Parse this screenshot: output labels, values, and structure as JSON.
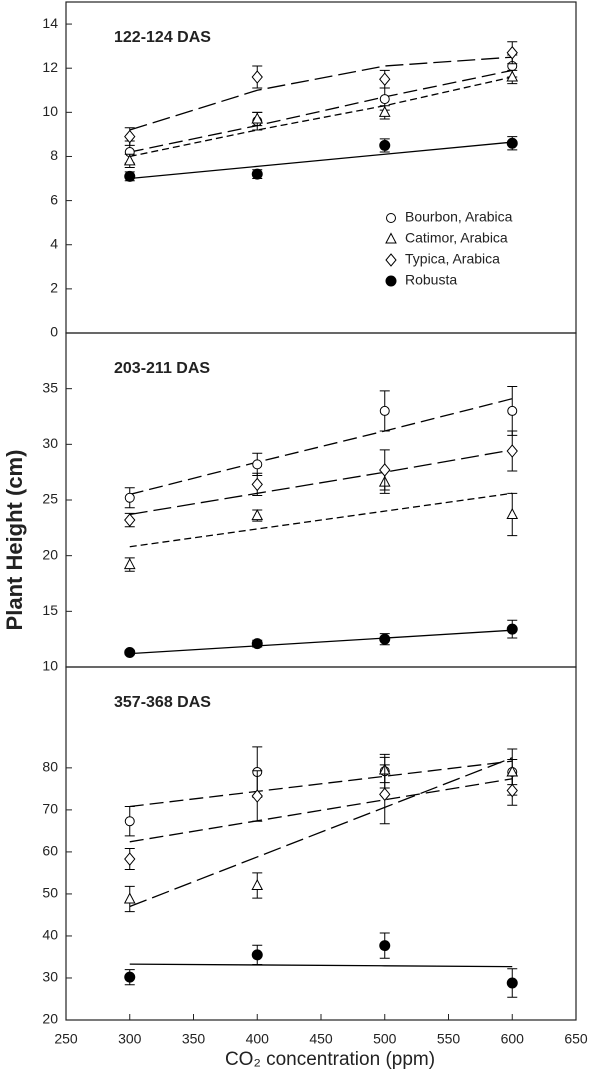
{
  "chart_data": [
    {
      "type": "scatter",
      "title": "122-124 DAS",
      "y_label": "Plant Height (cm)",
      "x": [
        300,
        400,
        500,
        600
      ],
      "xlim": [
        250,
        650
      ],
      "ylim": [
        0,
        15
      ],
      "yticks": [
        0,
        2,
        4,
        6,
        8,
        10,
        12,
        14
      ],
      "legend": "upper right",
      "series": [
        {
          "name": "Bourbon, Arabica",
          "marker": "circle",
          "color": "#000000",
          "dash": "14,6",
          "values": [
            8.2,
            9.6,
            10.6,
            12.1
          ],
          "errors": [
            0.5,
            0.4,
            0.5,
            0.5
          ],
          "fit": [
            8.2,
            9.4,
            10.7,
            11.9
          ]
        },
        {
          "name": "Catimor, Arabica",
          "marker": "triangle",
          "color": "#000000",
          "dash": "7,4",
          "values": [
            7.8,
            9.7,
            10.0,
            11.6
          ],
          "errors": [
            0.3,
            0.3,
            0.3,
            0.3
          ],
          "fit": [
            8.0,
            9.2,
            10.3,
            11.6
          ]
        },
        {
          "name": "Typica, Arabica",
          "marker": "diamond",
          "color": "#000000",
          "dash": "18,6",
          "values": [
            8.9,
            11.6,
            11.5,
            12.7
          ],
          "errors": [
            0.4,
            0.5,
            0.4,
            0.5
          ],
          "fit": [
            9.2,
            11.0,
            12.1,
            12.5
          ]
        },
        {
          "name": "Robusta",
          "marker": "filled-circle",
          "color": "#000000",
          "dash": "none",
          "values": [
            7.1,
            7.2,
            8.5,
            8.6
          ],
          "errors": [
            0.2,
            0.2,
            0.3,
            0.3
          ],
          "fit": [
            7.0,
            7.55,
            8.1,
            8.65
          ]
        }
      ]
    },
    {
      "type": "scatter",
      "title": "203-211 DAS",
      "x": [
        300,
        400,
        500,
        600
      ],
      "xlim": [
        250,
        650
      ],
      "ylim": [
        10,
        40
      ],
      "yticks": [
        10,
        15,
        20,
        25,
        30,
        35
      ],
      "series": [
        {
          "marker": "circle",
          "color": "#000000",
          "dash": "14,6",
          "values": [
            25.2,
            28.2,
            33.0,
            33.0
          ],
          "errors": [
            0.9,
            1.0,
            1.8,
            2.2
          ],
          "fit": [
            25.5,
            28.4,
            31.2,
            34.1
          ]
        },
        {
          "marker": "triangle",
          "color": "#000000",
          "dash": "7,4",
          "values": [
            19.2,
            23.6,
            26.6,
            23.7
          ],
          "errors": [
            0.6,
            0.5,
            1.0,
            1.9
          ],
          "fit": [
            20.8,
            22.4,
            24.0,
            25.6
          ]
        },
        {
          "marker": "diamond",
          "color": "#000000",
          "dash": "18,6",
          "values": [
            23.2,
            26.4,
            27.7,
            29.4
          ],
          "errors": [
            0.6,
            1.0,
            1.8,
            1.8
          ],
          "fit": [
            23.7,
            25.6,
            27.5,
            29.5
          ]
        },
        {
          "marker": "filled-circle",
          "color": "#000000",
          "dash": "none",
          "values": [
            11.3,
            12.1,
            12.5,
            13.4
          ],
          "errors": [
            0.2,
            0.3,
            0.5,
            0.8
          ],
          "fit": [
            11.2,
            11.9,
            12.6,
            13.3
          ]
        }
      ]
    },
    {
      "type": "scatter",
      "title": "357-368 DAS",
      "x_label": "CO₂ concentration (ppm)",
      "x": [
        300,
        400,
        500,
        600
      ],
      "xlim": [
        250,
        650
      ],
      "xticks": [
        250,
        300,
        350,
        400,
        450,
        500,
        550,
        600,
        650
      ],
      "ylim": [
        20,
        104
      ],
      "yticks": [
        20,
        30,
        40,
        50,
        60,
        70,
        80
      ],
      "series": [
        {
          "marker": "circle",
          "color": "#000000",
          "dash": "14,6",
          "values": [
            67.3,
            79.0,
            79.2,
            79.0
          ],
          "errors": [
            3.5,
            6.0,
            4.0,
            5.5
          ],
          "fit": [
            70.8,
            74.4,
            78.0,
            81.6
          ]
        },
        {
          "marker": "triangle",
          "color": "#000000",
          "dash": "18,6",
          "values": [
            48.8,
            52.0,
            79.5,
            79.0
          ],
          "errors": [
            3.0,
            3.0,
            3.0,
            3.0
          ],
          "fit": [
            47.0,
            58.8,
            70.6,
            82.4
          ]
        },
        {
          "marker": "diamond",
          "color": "#000000",
          "dash": "14,6",
          "values": [
            58.3,
            73.3,
            73.7,
            74.6
          ],
          "errors": [
            2.5,
            6.0,
            7.0,
            3.5
          ],
          "fit": [
            62.4,
            67.4,
            72.4,
            77.4
          ]
        },
        {
          "marker": "filled-circle",
          "color": "#000000",
          "dash": "none",
          "values": [
            30.2,
            35.5,
            37.7,
            28.8
          ],
          "errors": [
            1.8,
            2.3,
            3.0,
            3.4
          ],
          "fit": [
            33.3,
            33.1,
            32.9,
            32.7
          ]
        }
      ]
    }
  ]
}
